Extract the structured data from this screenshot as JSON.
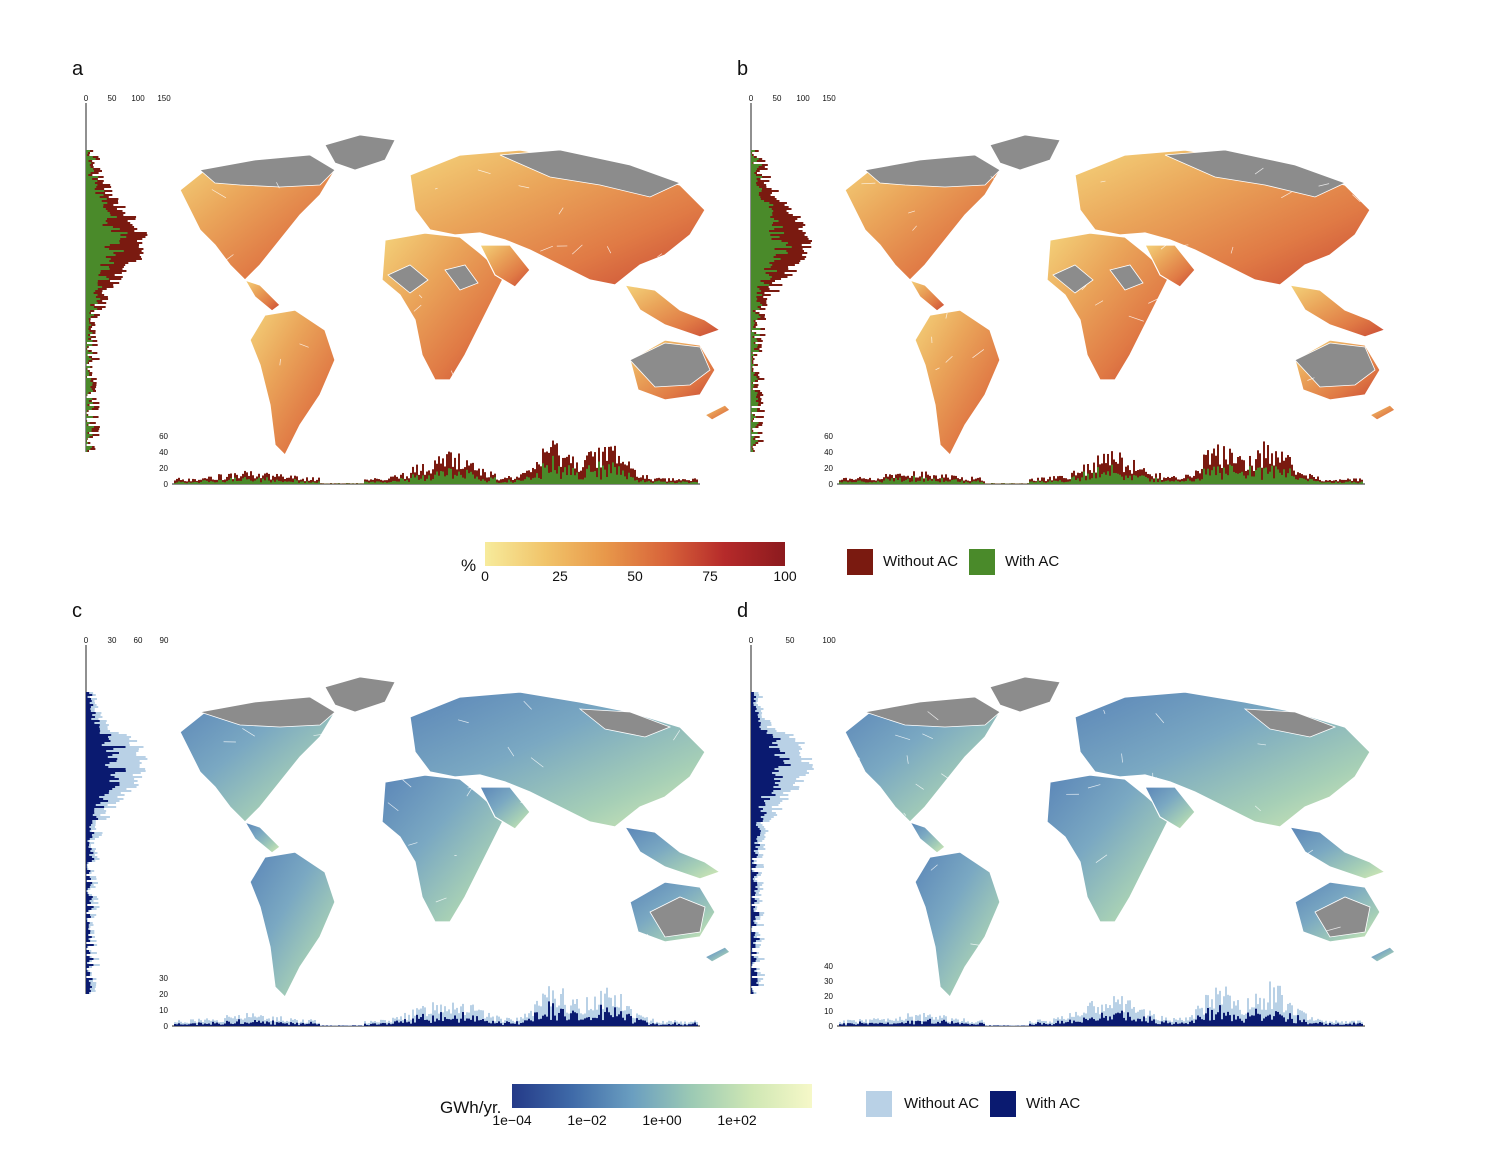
{
  "panels": [
    {
      "id": "a",
      "label": "a",
      "scheme": "heat",
      "side_ticks": [
        "0",
        "50",
        "100",
        "150"
      ],
      "bottom_ticks": [
        "0",
        "20",
        "40",
        "60"
      ],
      "colors": {
        "without": "#7a1a10",
        "with": "#4a8a2a"
      }
    },
    {
      "id": "b",
      "label": "b",
      "scheme": "heat",
      "side_ticks": [
        "0",
        "50",
        "100",
        "150"
      ],
      "bottom_ticks": [
        "0",
        "20",
        "40",
        "60"
      ],
      "colors": {
        "without": "#7a1a10",
        "with": "#4a8a2a"
      }
    },
    {
      "id": "c",
      "label": "c",
      "scheme": "energy",
      "side_ticks": [
        "0",
        "30",
        "60",
        "90"
      ],
      "bottom_ticks": [
        "0",
        "10",
        "20",
        "30"
      ],
      "colors": {
        "without": "#b9d1e6",
        "with": "#0a1a70"
      }
    },
    {
      "id": "d",
      "label": "d",
      "scheme": "energy",
      "side_ticks": [
        "0",
        "50",
        "100"
      ],
      "bottom_ticks": [
        "0",
        "10",
        "20",
        "30",
        "40"
      ],
      "colors": {
        "without": "#b9d1e6",
        "with": "#0a1a70"
      }
    }
  ],
  "legend_top": {
    "title": "%",
    "ticks": [
      "0",
      "25",
      "50",
      "75",
      "100"
    ],
    "gradient": [
      "#f7eb9c",
      "#f1c46a",
      "#e8984a",
      "#d8643a",
      "#b52a2a",
      "#8c1a1e"
    ],
    "key": [
      {
        "label": "Without AC",
        "color": "#7a1a10"
      },
      {
        "label": "With AC",
        "color": "#4a8a2a"
      }
    ]
  },
  "legend_bottom": {
    "title": "GWh/yr.",
    "ticks": [
      "1e−04",
      "1e−02",
      "1e+00",
      "1e+02"
    ],
    "gradient": [
      "#243a88",
      "#3f6aa8",
      "#6a9ec0",
      "#9ccab4",
      "#cfe7b4",
      "#f6f8c8"
    ],
    "key": [
      {
        "label": "Without AC",
        "color": "#b9d1e6"
      },
      {
        "label": "With AC",
        "color": "#0a1a70"
      }
    ]
  }
}
